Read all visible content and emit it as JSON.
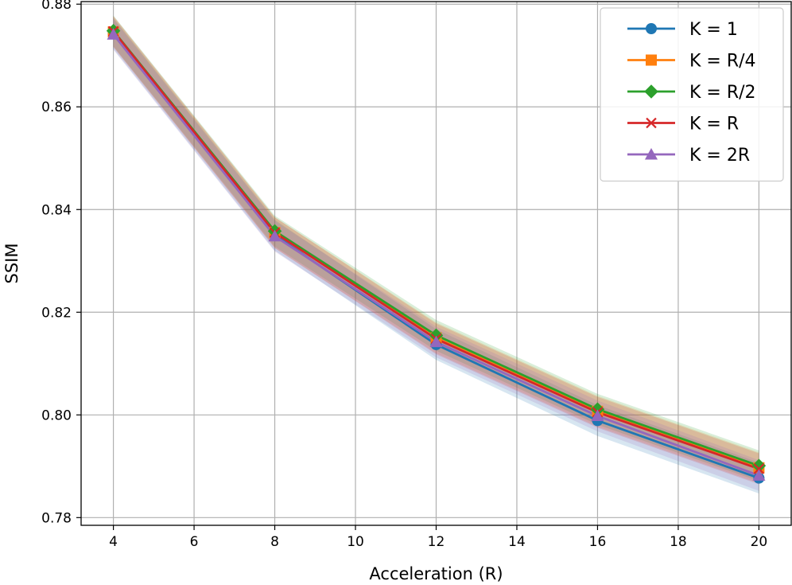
{
  "chart_data": {
    "type": "line",
    "xlabel": "Acceleration (R)",
    "ylabel": "SSIM",
    "x": [
      4,
      8,
      12,
      16,
      20
    ],
    "xlim": [
      3.2,
      20.8
    ],
    "ylim": [
      0.7785,
      0.8805
    ],
    "xticks": [
      4,
      6,
      8,
      10,
      12,
      14,
      16,
      18,
      20
    ],
    "yticks": [
      0.78,
      0.8,
      0.82,
      0.84,
      0.86,
      0.88
    ],
    "ytick_labels": [
      "0.78",
      "0.80",
      "0.82",
      "0.84",
      "0.86",
      "0.88"
    ],
    "grid": true,
    "legend_position": "top-right",
    "band_halfwidth": 0.003,
    "series": [
      {
        "name": "K = 1",
        "color": "#1f77b4",
        "marker": "circle",
        "values": [
          0.8743,
          0.835,
          0.8137,
          0.7989,
          0.7877
        ]
      },
      {
        "name": "K = R/4",
        "color": "#ff7f0e",
        "marker": "square",
        "values": [
          0.8746,
          0.8355,
          0.815,
          0.8007,
          0.7897
        ]
      },
      {
        "name": "K = R/2",
        "color": "#2ca02c",
        "marker": "diamond",
        "values": [
          0.8748,
          0.8358,
          0.8155,
          0.8011,
          0.7901
        ]
      },
      {
        "name": "K = R",
        "color": "#d62728",
        "marker": "x",
        "values": [
          0.8747,
          0.8355,
          0.8148,
          0.8005,
          0.7895
        ]
      },
      {
        "name": "K = 2R",
        "color": "#9467bd",
        "marker": "triangle",
        "values": [
          0.8741,
          0.8348,
          0.8142,
          0.7998,
          0.7882
        ]
      }
    ]
  }
}
